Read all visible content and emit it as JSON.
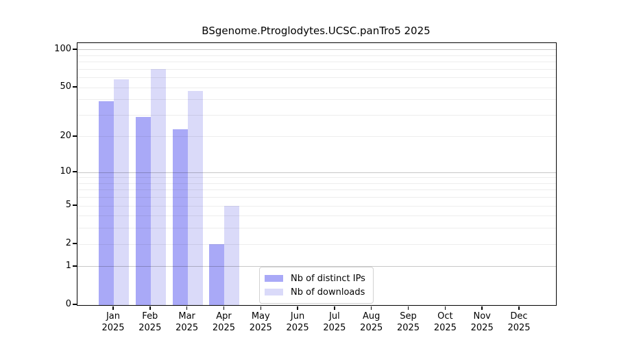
{
  "chart_data": {
    "type": "bar",
    "title": "BSgenome.Ptroglodytes.UCSC.panTro5 2025",
    "categories": [
      "Jan 2025",
      "Feb 2025",
      "Mar 2025",
      "Apr 2025",
      "May 2025",
      "Jun 2025",
      "Jul 2025",
      "Aug 2025",
      "Sep 2025",
      "Oct 2025",
      "Nov 2025",
      "Dec 2025"
    ],
    "series": [
      {
        "name": "Nb of distinct IPs",
        "color": "#a9a9f7",
        "values": [
          39,
          29,
          23,
          2,
          null,
          null,
          null,
          null,
          null,
          null,
          null,
          null
        ]
      },
      {
        "name": "Nb of downloads",
        "color": "#dadaf9",
        "values": [
          58,
          70,
          47,
          5,
          null,
          null,
          null,
          null,
          null,
          null,
          null,
          null
        ]
      }
    ],
    "yscale": "log1p",
    "yticks": [
      0,
      1,
      2,
      5,
      10,
      20,
      50,
      100
    ],
    "ylim": [
      0,
      113
    ],
    "xlabel": "",
    "ylabel": "",
    "grid": "horizontal",
    "legend_position": "bottom-center"
  },
  "colors": {
    "axis": "#000000",
    "grid_major": "#bdbdbd",
    "grid_minor": "#e9e9e9",
    "legend_border": "#d2d2d2",
    "background": "#ffffff"
  }
}
